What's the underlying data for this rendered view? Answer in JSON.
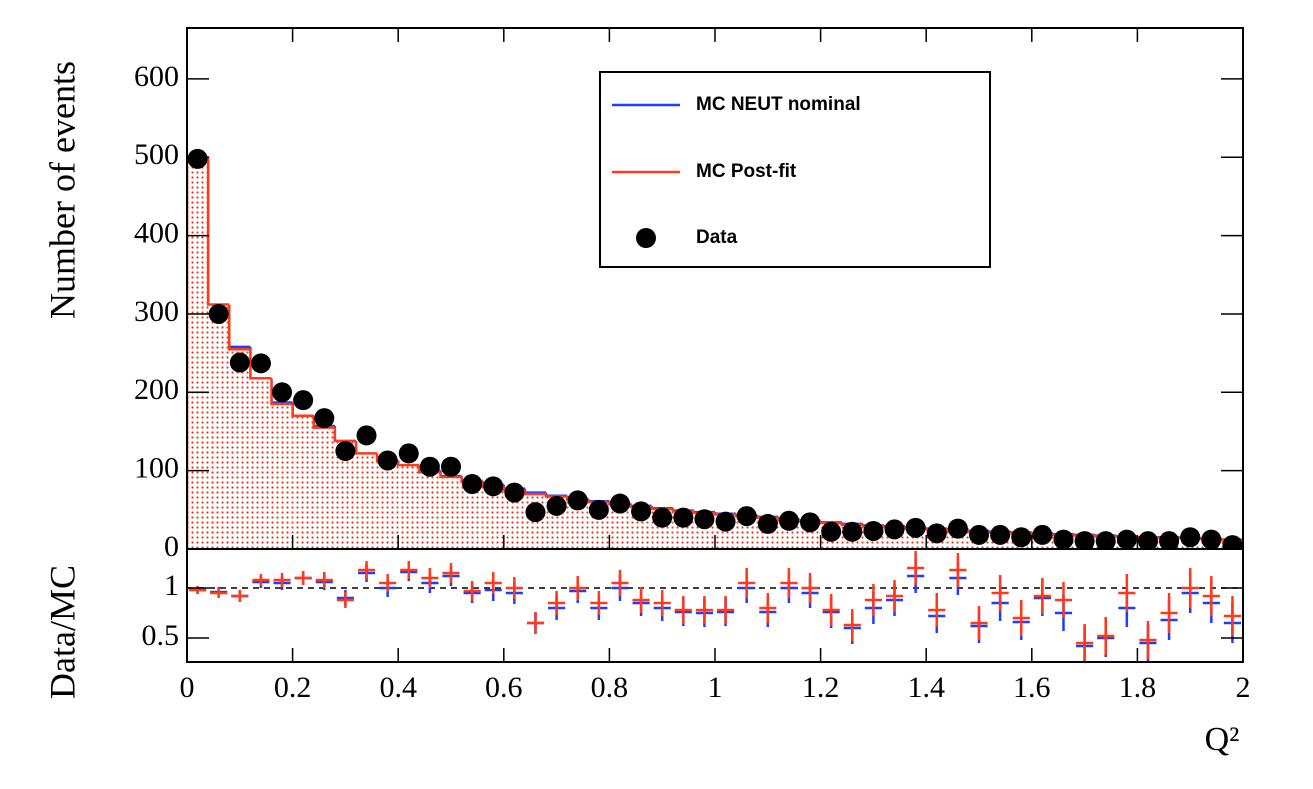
{
  "chart_data": [
    {
      "type": "histogram",
      "y_label": "Number of events",
      "bins": [
        0,
        0.04,
        0.08,
        0.12,
        0.16,
        0.2,
        0.24,
        0.28,
        0.32,
        0.36,
        0.4,
        0.44,
        0.48,
        0.52,
        0.56,
        0.6,
        0.64,
        0.68,
        0.72,
        0.76,
        0.8,
        0.84,
        0.88,
        0.92,
        0.96,
        1,
        1.04,
        1.08,
        1.12,
        1.16,
        1.2,
        1.24,
        1.28,
        1.32,
        1.36,
        1.4,
        1.44,
        1.48,
        1.52,
        1.56,
        1.6,
        1.64,
        1.68,
        1.72,
        1.76,
        1.8,
        1.84,
        1.88,
        1.92,
        1.96,
        2
      ],
      "xlim": [
        0,
        2
      ],
      "ylim": [
        0,
        665
      ],
      "yticks": [
        0,
        100,
        200,
        300,
        400,
        500,
        600
      ],
      "legend": "top-right",
      "series": [
        {
          "name": "MC NEUT nominal",
          "color": "#1f3cff",
          "style": "step",
          "values": [
            500,
            310,
            258,
            215,
            187,
            170,
            157,
            136,
            120,
            113,
            105,
            100,
            93,
            87,
            82,
            77,
            72,
            68,
            64,
            61,
            58,
            55,
            52,
            49,
            47,
            45,
            43,
            41,
            38,
            36,
            34,
            32,
            30,
            29,
            27,
            26,
            25,
            23,
            22,
            21,
            20,
            19,
            18,
            17,
            16,
            15,
            15,
            14,
            13,
            12
          ]
        },
        {
          "name": "MC Post-fit",
          "color": "#ff3a1a",
          "style": "step-filled",
          "values": [
            500,
            312,
            255,
            218,
            185,
            170,
            155,
            138,
            122,
            112,
            107,
            98,
            92,
            86,
            80,
            75,
            70,
            67,
            63,
            60,
            57,
            54,
            51,
            48,
            46,
            44,
            42,
            40,
            37,
            35,
            33,
            31,
            29,
            28,
            26,
            25,
            24,
            22,
            21,
            20,
            19,
            18,
            17,
            16,
            16,
            15,
            14,
            14,
            13,
            12
          ]
        },
        {
          "name": "Data",
          "color": "#000000",
          "style": "points",
          "values": [
            498,
            300,
            238,
            237,
            200,
            190,
            167,
            125,
            145,
            113,
            122,
            105,
            105,
            83,
            80,
            72,
            47,
            55,
            62,
            50,
            58,
            48,
            40,
            40,
            38,
            35,
            42,
            32,
            36,
            34,
            22,
            22,
            23,
            25,
            27,
            20,
            26,
            18,
            18,
            15,
            18,
            12,
            10,
            10,
            12,
            10,
            10,
            15,
            12,
            5
          ]
        }
      ]
    },
    {
      "type": "ratio",
      "y_label": "Data/MC",
      "x_label": "Q²",
      "xlim": [
        0,
        2
      ],
      "xticks": [
        0,
        0.2,
        0.4,
        0.6,
        0.8,
        1,
        1.2,
        1.4,
        1.6,
        1.8,
        2
      ],
      "ylim": [
        0.26,
        1.39
      ],
      "yticks": [
        0.5,
        1
      ],
      "reference_line": 1,
      "series": [
        {
          "name": "MC NEUT nominal",
          "color": "#1f3cff",
          "values": [
            0.98,
            0.96,
            0.92,
            1.06,
            1.05,
            1.1,
            1.06,
            0.9,
            1.15,
            1.0,
            1.16,
            1.05,
            1.12,
            0.95,
            0.98,
            0.95,
            0.65,
            0.8,
            0.97,
            0.8,
            1.0,
            0.85,
            0.8,
            0.76,
            0.75,
            0.76,
            1.0,
            0.76,
            1.0,
            0.95,
            0.76,
            0.6,
            0.8,
            0.88,
            1.12,
            0.72,
            1.1,
            0.62,
            0.85,
            0.66,
            0.9,
            0.75,
            0.42,
            0.5,
            0.8,
            0.45,
            0.68,
            0.95,
            0.85,
            0.65
          ],
          "errors": [
            0.04,
            0.05,
            0.06,
            0.06,
            0.07,
            0.07,
            0.08,
            0.08,
            0.09,
            0.09,
            0.09,
            0.1,
            0.1,
            0.1,
            0.11,
            0.11,
            0.11,
            0.12,
            0.12,
            0.12,
            0.13,
            0.13,
            0.13,
            0.14,
            0.14,
            0.14,
            0.15,
            0.15,
            0.15,
            0.15,
            0.16,
            0.16,
            0.16,
            0.16,
            0.17,
            0.17,
            0.17,
            0.17,
            0.18,
            0.18,
            0.18,
            0.18,
            0.19,
            0.19,
            0.19,
            0.19,
            0.2,
            0.2,
            0.2,
            0.2
          ]
        },
        {
          "name": "MC Post-fit",
          "color": "#ff3a1a",
          "values": [
            0.98,
            0.95,
            0.92,
            1.08,
            1.08,
            1.1,
            1.08,
            0.88,
            1.18,
            1.05,
            1.18,
            1.1,
            1.15,
            0.97,
            1.05,
            1.0,
            0.65,
            0.85,
            1.0,
            0.85,
            1.05,
            0.88,
            0.85,
            0.78,
            0.78,
            0.78,
            1.05,
            0.8,
            1.05,
            1.0,
            0.78,
            0.63,
            0.88,
            0.92,
            1.2,
            0.78,
            1.18,
            0.65,
            0.95,
            0.7,
            0.92,
            0.88,
            0.45,
            0.52,
            0.95,
            0.48,
            0.75,
            1.0,
            0.92,
            0.72
          ],
          "errors": [
            0.04,
            0.05,
            0.06,
            0.06,
            0.07,
            0.07,
            0.08,
            0.08,
            0.09,
            0.09,
            0.09,
            0.1,
            0.1,
            0.1,
            0.11,
            0.11,
            0.11,
            0.12,
            0.12,
            0.12,
            0.13,
            0.13,
            0.13,
            0.14,
            0.14,
            0.14,
            0.15,
            0.15,
            0.15,
            0.15,
            0.16,
            0.16,
            0.16,
            0.16,
            0.17,
            0.17,
            0.17,
            0.17,
            0.18,
            0.18,
            0.18,
            0.18,
            0.19,
            0.19,
            0.19,
            0.19,
            0.2,
            0.2,
            0.2,
            0.2
          ]
        }
      ]
    }
  ]
}
